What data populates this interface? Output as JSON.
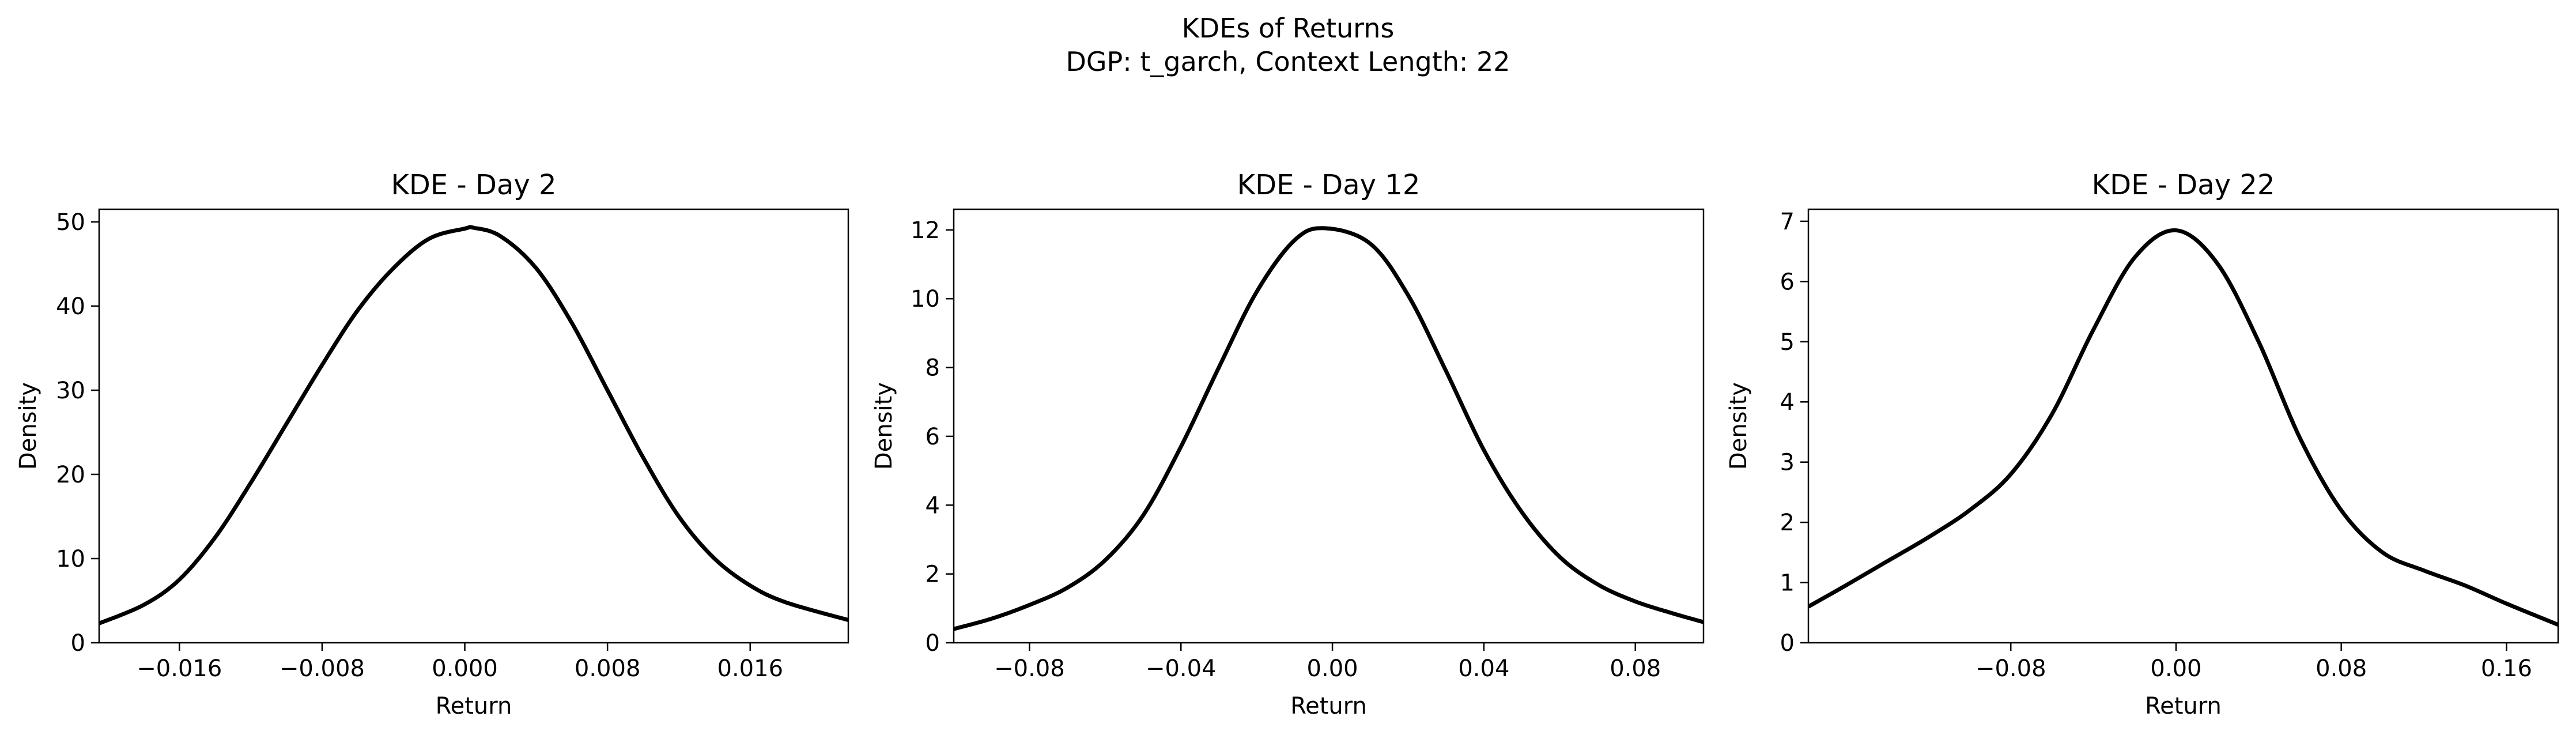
{
  "figure": {
    "title": "KDEs of Returns",
    "subtitle": "DGP: t_garch, Context Length: 22"
  },
  "chart_data": [
    {
      "type": "line",
      "title": "KDE - Day 2",
      "xlabel": "Return",
      "ylabel": "Density",
      "xlim": [
        -0.0205,
        0.0215
      ],
      "ylim": [
        0,
        51.5
      ],
      "xticks": [
        -0.016,
        -0.008,
        0.0,
        0.008,
        0.016
      ],
      "xtick_labels": [
        "−0.016",
        "−0.008",
        "0.000",
        "0.008",
        "0.016"
      ],
      "yticks": [
        0,
        10,
        20,
        30,
        40,
        50
      ],
      "ytick_labels": [
        "0",
        "10",
        "20",
        "30",
        "40",
        "50"
      ],
      "grid": false,
      "line_color": "#000000",
      "x": [
        -0.0205,
        -0.018,
        -0.016,
        -0.014,
        -0.012,
        -0.01,
        -0.008,
        -0.006,
        -0.004,
        -0.002,
        0.0,
        0.0005,
        0.002,
        0.004,
        0.006,
        0.008,
        0.01,
        0.012,
        0.014,
        0.016,
        0.018,
        0.0215
      ],
      "y": [
        2.3,
        4.5,
        7.5,
        12.5,
        19,
        26,
        33,
        39.5,
        44.5,
        48,
        49.2,
        49.3,
        48.3,
        44.5,
        38,
        30,
        22,
        15,
        10,
        6.8,
        4.8,
        2.7
      ]
    },
    {
      "type": "line",
      "title": "KDE - Day 12",
      "xlabel": "Return",
      "ylabel": "Density",
      "xlim": [
        -0.1,
        0.098
      ],
      "ylim": [
        0,
        12.6
      ],
      "xticks": [
        -0.08,
        -0.04,
        0.0,
        0.04,
        0.08
      ],
      "xtick_labels": [
        "−0.08",
        "−0.04",
        "0.00",
        "0.04",
        "0.08"
      ],
      "yticks": [
        0,
        2,
        4,
        6,
        8,
        10,
        12
      ],
      "ytick_labels": [
        "0",
        "2",
        "4",
        "6",
        "8",
        "10",
        "12"
      ],
      "grid": false,
      "line_color": "#000000",
      "x": [
        -0.1,
        -0.09,
        -0.08,
        -0.07,
        -0.06,
        -0.05,
        -0.04,
        -0.03,
        -0.02,
        -0.01,
        -0.002,
        0.01,
        0.02,
        0.03,
        0.04,
        0.05,
        0.06,
        0.07,
        0.08,
        0.09,
        0.098
      ],
      "y": [
        0.4,
        0.7,
        1.1,
        1.6,
        2.4,
        3.7,
        5.7,
        8.0,
        10.2,
        11.7,
        12.05,
        11.6,
        10.1,
        7.9,
        5.6,
        3.8,
        2.5,
        1.7,
        1.2,
        0.85,
        0.6
      ]
    },
    {
      "type": "line",
      "title": "KDE - Day 22",
      "xlabel": "Return",
      "ylabel": "Density",
      "xlim": [
        -0.178,
        0.185
      ],
      "ylim": [
        0,
        7.2
      ],
      "xticks": [
        -0.08,
        0.0,
        0.08,
        0.16
      ],
      "xtick_labels": [
        "−0.08",
        "0.00",
        "0.08",
        "0.16"
      ],
      "yticks": [
        0,
        1,
        2,
        3,
        4,
        5,
        6,
        7
      ],
      "ytick_labels": [
        "0",
        "1",
        "2",
        "3",
        "4",
        "5",
        "6",
        "7"
      ],
      "grid": false,
      "line_color": "#000000",
      "x": [
        -0.178,
        -0.16,
        -0.14,
        -0.12,
        -0.1,
        -0.08,
        -0.06,
        -0.04,
        -0.02,
        0.0,
        0.02,
        0.04,
        0.06,
        0.08,
        0.1,
        0.12,
        0.14,
        0.16,
        0.185
      ],
      "y": [
        0.6,
        0.95,
        1.35,
        1.75,
        2.2,
        2.8,
        3.8,
        5.2,
        6.4,
        6.85,
        6.3,
        5.0,
        3.4,
        2.2,
        1.5,
        1.2,
        0.95,
        0.65,
        0.3
      ]
    }
  ]
}
